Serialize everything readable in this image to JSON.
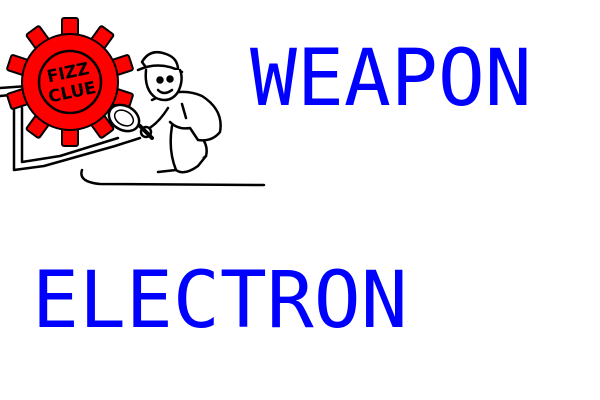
{
  "logo": {
    "text_line1": "FIZZ",
    "text_line2": "CLUE",
    "gear_color": "#ff0000",
    "icon": "detective-with-magnifying-glass-icon"
  },
  "words": [
    "WEAPON",
    "ELECTRON"
  ],
  "colors": {
    "word_text": "#0000ff",
    "background": "#ffffff"
  }
}
